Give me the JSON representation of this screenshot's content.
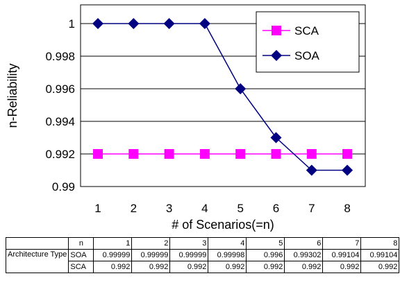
{
  "chart_data": {
    "type": "line",
    "xlabel": "# of Scenarios(=n)",
    "ylabel": "n-Reliability",
    "x": [
      1,
      2,
      3,
      4,
      5,
      6,
      7,
      8
    ],
    "ylim": [
      0.99,
      1.0
    ],
    "yticks": [
      "0.99",
      "0.992",
      "0.994",
      "0.996",
      "0.998",
      "1"
    ],
    "series": [
      {
        "name": "SCA",
        "color": "#ff00ff",
        "marker": "square",
        "values": [
          0.992,
          0.992,
          0.992,
          0.992,
          0.992,
          0.992,
          0.992,
          0.992
        ]
      },
      {
        "name": "SOA",
        "color": "#000080",
        "marker": "diamond",
        "values": [
          1.0,
          1.0,
          1.0,
          1.0,
          0.996,
          0.993,
          0.991,
          0.991
        ]
      }
    ],
    "grid": "horizontal",
    "legend_position": "top-right"
  },
  "table": {
    "header_label": "n",
    "columns": [
      "1",
      "2",
      "3",
      "4",
      "5",
      "6",
      "7",
      "8"
    ],
    "row_group_label": "Architecture Type",
    "rows": [
      {
        "label": "SOA",
        "values": [
          "0.99999",
          "0.99999",
          "0.99999",
          "0.99998",
          "0.996",
          "0.99302",
          "0.99104",
          "0.99104"
        ]
      },
      {
        "label": "SCA",
        "values": [
          "0.992",
          "0.992",
          "0.992",
          "0.992",
          "0.992",
          "0.992",
          "0.992",
          "0.992"
        ]
      }
    ]
  }
}
